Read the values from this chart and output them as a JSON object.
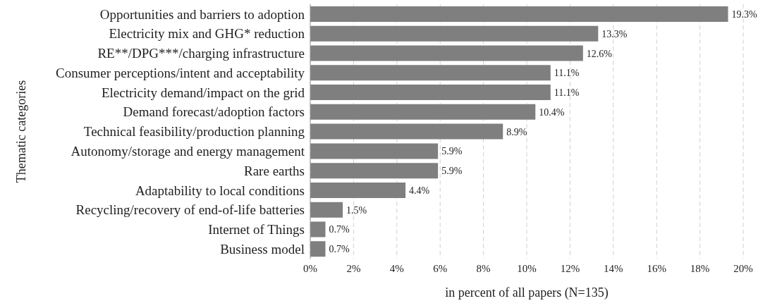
{
  "chart_data": {
    "type": "bar",
    "orientation": "horizontal",
    "ylabel": "Thematic categories",
    "xlabel": "in percent of all papers (N=135)",
    "categories": [
      "Opportunities and barriers to adoption",
      "Electricity mix and GHG* reduction",
      "RE**/DPG***/charging infrastructure",
      "Consumer perceptions/intent and acceptability",
      "Electricity demand/impact on the grid",
      "Demand forecast/adoption factors",
      "Technical feasibility/production planning",
      "Autonomy/storage and energy management",
      "Rare earths",
      "Adaptability to local conditions",
      "Recycling/recovery of end-of-life batteries",
      "Internet of Things",
      "Business model"
    ],
    "values": [
      19.3,
      13.3,
      12.6,
      11.1,
      11.1,
      10.4,
      8.9,
      5.9,
      5.9,
      4.4,
      1.5,
      0.7,
      0.7
    ],
    "value_labels": [
      "19.3%",
      "13.3%",
      "12.6%",
      "11.1%",
      "11.1%",
      "10.4%",
      "8.9%",
      "5.9%",
      "5.9%",
      "4.4%",
      "1.5%",
      "0.7%",
      "0.7%"
    ],
    "color": "#7f7f7f",
    "xlim": [
      0,
      20
    ],
    "xticks": [
      {
        "value": 0,
        "label": "0%"
      },
      {
        "value": 2,
        "label": "2%"
      },
      {
        "value": 4,
        "label": "4%"
      },
      {
        "value": 6,
        "label": "6%"
      },
      {
        "value": 8,
        "label": "8%"
      },
      {
        "value": 10,
        "label": "10%"
      },
      {
        "value": 12,
        "label": "12%"
      },
      {
        "value": 14,
        "label": "14%"
      },
      {
        "value": 16,
        "label": "16%"
      },
      {
        "value": 18,
        "label": "18%"
      },
      {
        "value": 20,
        "label": "20%"
      }
    ],
    "grid": "x"
  }
}
